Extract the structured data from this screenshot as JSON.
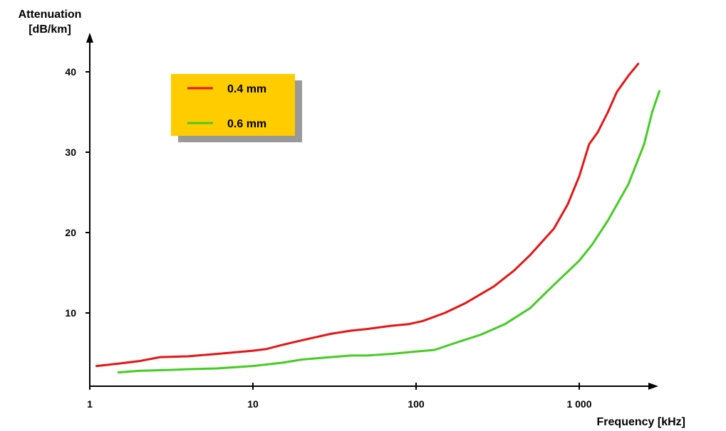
{
  "chart_data": {
    "type": "line",
    "ylabel_line1": "Attenuation",
    "ylabel_line2": "[dB/km]",
    "xlabel": "Frequency [kHz]",
    "x_scale": "log",
    "xlim": [
      1,
      3500
    ],
    "ylim": [
      1,
      41
    ],
    "grid": false,
    "legend_position": "top-left",
    "legend_background": "#ffcc00",
    "legend_shadow": "#999999",
    "x_ticks": [
      {
        "value": 1,
        "label": "1"
      },
      {
        "value": 10,
        "label": "10"
      },
      {
        "value": 100,
        "label": "100"
      },
      {
        "value": 1000,
        "label": "1 000"
      }
    ],
    "y_ticks": [
      {
        "value": 10,
        "label": "10"
      },
      {
        "value": 20,
        "label": "20"
      },
      {
        "value": 30,
        "label": "30"
      },
      {
        "value": 40,
        "label": "40"
      }
    ],
    "series": [
      {
        "name": "0.4 mm",
        "color": "#e81414",
        "points": [
          [
            1.1,
            3.4
          ],
          [
            1.5,
            3.7
          ],
          [
            2,
            4.0
          ],
          [
            2.7,
            4.5
          ],
          [
            4,
            4.6
          ],
          [
            6,
            4.9
          ],
          [
            10,
            5.3
          ],
          [
            12,
            5.5
          ],
          [
            15,
            6.0
          ],
          [
            20,
            6.6
          ],
          [
            30,
            7.4
          ],
          [
            40,
            7.8
          ],
          [
            50,
            8.0
          ],
          [
            70,
            8.4
          ],
          [
            90,
            8.6
          ],
          [
            110,
            9.0
          ],
          [
            150,
            10.0
          ],
          [
            200,
            11.2
          ],
          [
            300,
            13.3
          ],
          [
            400,
            15.3
          ],
          [
            500,
            17.2
          ],
          [
            700,
            20.5
          ],
          [
            850,
            23.5
          ],
          [
            1000,
            27.0
          ],
          [
            1150,
            31.0
          ],
          [
            1300,
            32.5
          ],
          [
            1500,
            35.0
          ],
          [
            1700,
            37.5
          ],
          [
            2000,
            39.5
          ],
          [
            2300,
            41.0
          ]
        ]
      },
      {
        "name": "0.6 mm",
        "color": "#44cc22",
        "points": [
          [
            1.5,
            2.6
          ],
          [
            2,
            2.8
          ],
          [
            3,
            2.9
          ],
          [
            4,
            3.0
          ],
          [
            6,
            3.1
          ],
          [
            10,
            3.4
          ],
          [
            15,
            3.8
          ],
          [
            20,
            4.2
          ],
          [
            30,
            4.5
          ],
          [
            40,
            4.7
          ],
          [
            50,
            4.7
          ],
          [
            70,
            4.9
          ],
          [
            100,
            5.2
          ],
          [
            130,
            5.4
          ],
          [
            170,
            6.2
          ],
          [
            250,
            7.3
          ],
          [
            350,
            8.6
          ],
          [
            500,
            10.6
          ],
          [
            700,
            13.5
          ],
          [
            1000,
            16.5
          ],
          [
            1200,
            18.5
          ],
          [
            1500,
            21.5
          ],
          [
            2000,
            26.0
          ],
          [
            2500,
            31.0
          ],
          [
            2800,
            35.0
          ],
          [
            3100,
            37.6
          ]
        ]
      }
    ]
  }
}
